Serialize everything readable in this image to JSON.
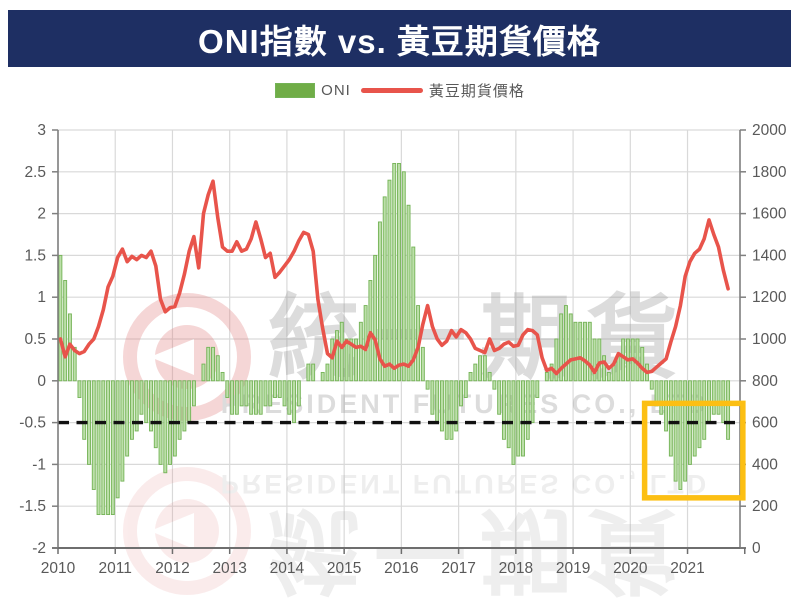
{
  "title": "ONI指數 vs. 黃豆期貨價格",
  "legend": [
    {
      "label": "ONI",
      "type": "bar",
      "color": "#70ad47"
    },
    {
      "label": "黃豆期貨價格",
      "type": "line",
      "color": "#e8544b"
    }
  ],
  "watermark": {
    "cjk": "統一期貨",
    "en": "PRESIDENT FUTURES CO., LTD"
  },
  "colors": {
    "header_bg": "#1e2f63",
    "bar_fill": "#bcdfa9",
    "bar_stroke": "#74b356",
    "line": "#e8544b",
    "dashed_line": "#111111",
    "highlight_box": "#fcbf13",
    "grid": "#d9d9d9",
    "axis": "#7f7f7f",
    "tick_label": "#595959",
    "watermark_pink": "#e07a7a",
    "watermark_gray": "#8f8f8f"
  },
  "chart_data": {
    "type": "bar+line combo, monthly Jan 2010 - Sep 2021",
    "x_tick_labels": [
      "2010",
      "2011",
      "2012",
      "2013",
      "2014",
      "2015",
      "2016",
      "2017",
      "2018",
      "2019",
      "2020",
      "2021"
    ],
    "x_axis_total_months": 143,
    "left_axis": {
      "min": -2,
      "max": 3,
      "tick_labels": [
        "3",
        "2.5",
        "2",
        "1.5",
        "1",
        "0.5",
        "0",
        "-0.5",
        "-1",
        "-1.5",
        "-2"
      ]
    },
    "right_axis": {
      "min": 0,
      "max": 2000,
      "tick_labels": [
        "2000",
        "1800",
        "1600",
        "1400",
        "1200",
        "1000",
        "800",
        "600",
        "400",
        "200",
        "0"
      ]
    },
    "reference_line": {
      "axis": "left",
      "value": -0.5,
      "style": "dashed"
    },
    "highlight_box": {
      "month_from": 123,
      "month_to": 143.6,
      "value_from": -0.27,
      "value_to": -1.4
    },
    "series": [
      {
        "name": "ONI",
        "type": "bar",
        "axis": "left",
        "values": [
          1.5,
          1.2,
          0.8,
          0.4,
          -0.2,
          -0.7,
          -1.0,
          -1.3,
          -1.6,
          -1.6,
          -1.6,
          -1.6,
          -1.4,
          -1.2,
          -0.9,
          -0.7,
          -0.6,
          -0.4,
          -0.5,
          -0.6,
          -0.8,
          -1.0,
          -1.1,
          -1.0,
          -0.9,
          -0.7,
          -0.6,
          -0.5,
          -0.3,
          0.0,
          0.2,
          0.4,
          0.4,
          0.3,
          0.1,
          -0.2,
          -0.4,
          -0.4,
          -0.3,
          -0.3,
          -0.4,
          -0.4,
          -0.4,
          -0.3,
          -0.3,
          -0.2,
          -0.2,
          -0.3,
          -0.4,
          -0.5,
          -0.3,
          0.0,
          0.2,
          0.2,
          0.0,
          0.1,
          0.2,
          0.5,
          0.6,
          0.7,
          0.5,
          0.5,
          0.5,
          0.7,
          0.9,
          1.2,
          1.5,
          1.9,
          2.2,
          2.4,
          2.6,
          2.6,
          2.5,
          2.1,
          1.6,
          0.9,
          0.4,
          -0.1,
          -0.4,
          -0.5,
          -0.6,
          -0.7,
          -0.7,
          -0.6,
          -0.3,
          -0.2,
          0.1,
          0.2,
          0.3,
          0.3,
          0.1,
          -0.1,
          -0.4,
          -0.7,
          -0.8,
          -1.0,
          -0.9,
          -0.9,
          -0.7,
          -0.5,
          -0.2,
          0.0,
          0.1,
          0.2,
          0.5,
          0.8,
          0.9,
          0.8,
          0.7,
          0.7,
          0.7,
          0.7,
          0.5,
          0.5,
          0.3,
          0.1,
          0.2,
          0.3,
          0.5,
          0.5,
          0.5,
          0.5,
          0.4,
          0.2,
          -0.1,
          -0.3,
          -0.4,
          -0.6,
          -0.9,
          -1.2,
          -1.3,
          -1.2,
          -1.0,
          -0.9,
          -0.8,
          -0.7,
          -0.5,
          -0.4,
          -0.4,
          -0.5,
          -0.7
        ]
      },
      {
        "name": "黃豆期貨價格",
        "type": "line",
        "axis": "right",
        "values": [
          1000,
          915,
          975,
          945,
          930,
          940,
          975,
          1000,
          1060,
          1140,
          1250,
          1300,
          1390,
          1430,
          1370,
          1395,
          1380,
          1400,
          1390,
          1420,
          1350,
          1190,
          1130,
          1150,
          1155,
          1220,
          1310,
          1420,
          1490,
          1340,
          1600,
          1690,
          1755,
          1580,
          1440,
          1420,
          1420,
          1465,
          1420,
          1430,
          1480,
          1560,
          1480,
          1390,
          1410,
          1295,
          1320,
          1350,
          1380,
          1420,
          1470,
          1510,
          1500,
          1420,
          1190,
          1050,
          930,
          910,
          990,
          960,
          990,
          975,
          960,
          965,
          950,
          1030,
          995,
          905,
          870,
          880,
          860,
          875,
          880,
          870,
          900,
          960,
          1070,
          1160,
          1060,
          1000,
          970,
          990,
          1040,
          1010,
          1045,
          1030,
          1000,
          955,
          945,
          935,
          1000,
          945,
          955,
          975,
          985,
          965,
          970,
          1020,
          1045,
          1040,
          1020,
          910,
          850,
          860,
          835,
          860,
          880,
          900,
          905,
          910,
          895,
          875,
          840,
          885,
          890,
          860,
          880,
          930,
          915,
          900,
          905,
          885,
          860,
          840,
          845,
          865,
          885,
          905,
          985,
          1060,
          1160,
          1300,
          1370,
          1410,
          1430,
          1480,
          1570,
          1500,
          1440,
          1330,
          1240
        ]
      }
    ]
  }
}
